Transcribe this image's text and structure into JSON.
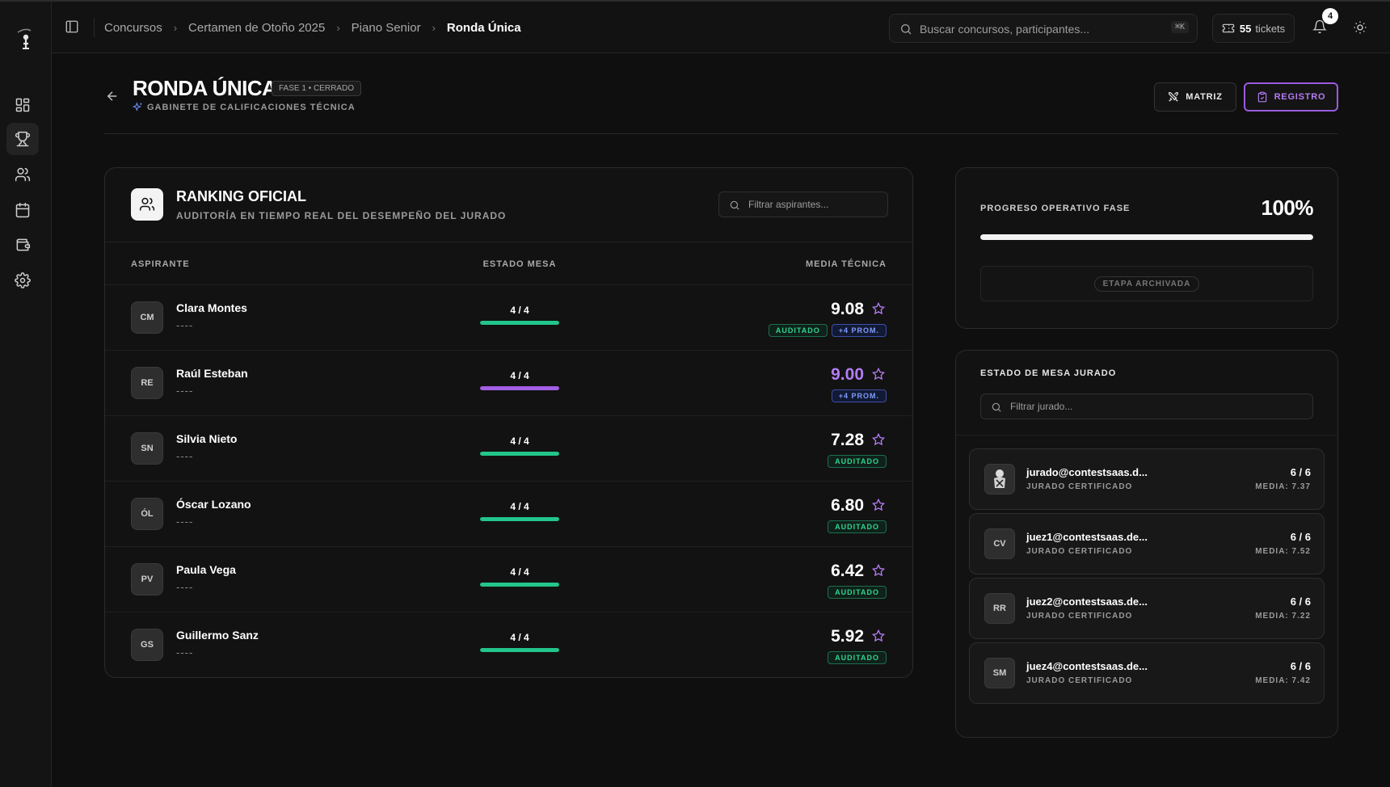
{
  "topbar": {
    "breadcrumbs": [
      "Concursos",
      "Certamen de Otoño 2025",
      "Piano Senior",
      "Ronda Única"
    ],
    "search_placeholder": "Buscar concursos, participantes...",
    "search_shortcut": "⌘K",
    "tickets_count": "55",
    "tickets_label": "tickets",
    "notifications_count": "4"
  },
  "header": {
    "title": "RONDA ÚNICA",
    "phase_tag": "FASE 1 • CERRADO",
    "subtitle": "GABINETE DE CALIFICACIONES TÉCNICA",
    "matriz_label": "MATRIZ",
    "registro_label": "REGISTRO"
  },
  "ranking": {
    "title": "RANKING OFICIAL",
    "subtitle": "AUDITORÍA EN TIEMPO REAL DEL DESEMPEÑO DEL JURADO",
    "filter_placeholder": "Filtrar aspirantes...",
    "columns": {
      "aspirante": "ASPIRANTE",
      "estado": "ESTADO MESA",
      "media": "MEDIA TÉCNICA"
    },
    "rows": [
      {
        "initials": "CM",
        "name": "Clara Montes",
        "sub": "----",
        "count": "4 / 4",
        "progress": 1.0,
        "bar_color": "#22c58b",
        "score": "9.08",
        "score_color": "#ffffff",
        "tags": [
          {
            "text": "AUDITADO",
            "kind": "green"
          },
          {
            "text": "+4 PROM.",
            "kind": "blue"
          }
        ]
      },
      {
        "initials": "RE",
        "name": "Raúl Esteban",
        "sub": "----",
        "count": "4 / 4",
        "progress": 1.0,
        "bar_color": "#a35ee6",
        "score": "9.00",
        "score_color": "#b47cf5",
        "tags": [
          {
            "text": "+4 PROM.",
            "kind": "blue"
          }
        ]
      },
      {
        "initials": "SN",
        "name": "Silvia Nieto",
        "sub": "----",
        "count": "4 / 4",
        "progress": 1.0,
        "bar_color": "#22c58b",
        "score": "7.28",
        "score_color": "#ffffff",
        "tags": [
          {
            "text": "AUDITADO",
            "kind": "green"
          }
        ]
      },
      {
        "initials": "ÓL",
        "name": "Óscar Lozano",
        "sub": "----",
        "count": "4 / 4",
        "progress": 1.0,
        "bar_color": "#22c58b",
        "score": "6.80",
        "score_color": "#ffffff",
        "tags": [
          {
            "text": "AUDITADO",
            "kind": "green"
          }
        ]
      },
      {
        "initials": "PV",
        "name": "Paula Vega",
        "sub": "----",
        "count": "4 / 4",
        "progress": 1.0,
        "bar_color": "#22c58b",
        "score": "6.42",
        "score_color": "#ffffff",
        "tags": [
          {
            "text": "AUDITADO",
            "kind": "green"
          }
        ]
      },
      {
        "initials": "GS",
        "name": "Guillermo Sanz",
        "sub": "----",
        "count": "4 / 4",
        "progress": 1.0,
        "bar_color": "#22c58b",
        "score": "5.92",
        "score_color": "#ffffff",
        "tags": [
          {
            "text": "AUDITADO",
            "kind": "green"
          }
        ]
      }
    ]
  },
  "progress": {
    "label": "PROGRESO OPERATIVO FASE",
    "value": "100%",
    "fraction": 1.0,
    "archived_label": "ETAPA ARCHIVADA"
  },
  "jury": {
    "title": "ESTADO DE MESA JURADO",
    "filter_placeholder": "Filtrar jurado...",
    "members": [
      {
        "initials": "",
        "avatar": "jury-avatar-icon",
        "email": "jurado@contestsaas.d...",
        "role": "JURADO CERTIFICADO",
        "count": "6 / 6",
        "media": "MEDIA: 7.37"
      },
      {
        "initials": "CV",
        "email": "juez1@contestsaas.de...",
        "role": "JURADO CERTIFICADO",
        "count": "6 / 6",
        "media": "MEDIA: 7.52"
      },
      {
        "initials": "RR",
        "email": "juez2@contestsaas.de...",
        "role": "JURADO CERTIFICADO",
        "count": "6 / 6",
        "media": "MEDIA: 7.22"
      },
      {
        "initials": "SM",
        "email": "juez4@contestsaas.de...",
        "role": "JURADO CERTIFICADO",
        "count": "6 / 6",
        "media": "MEDIA: 7.42"
      }
    ]
  }
}
